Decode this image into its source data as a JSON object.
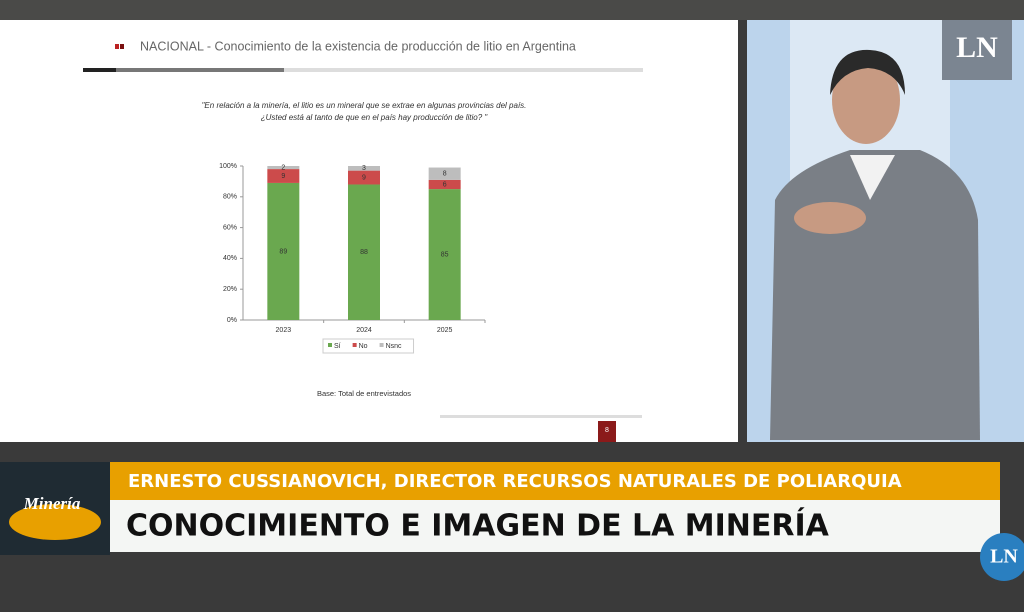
{
  "chart_data": {
    "type": "stacked-bar",
    "title": "NACIONAL - Conocimiento de la existencia de producción de litio en Argentina",
    "subtitle": [
      "\"En relación a la minería, el litio es un mineral que se extrae en algunas provincias del país.",
      "¿Usted está al tanto de que en el país hay producción de litio? \""
    ],
    "note": "Base: Total de entrevistados",
    "categories": [
      "2023",
      "2024",
      "2025"
    ],
    "series": [
      {
        "name": "Sí",
        "color": "#6aa84f",
        "values": [
          89,
          88,
          85
        ]
      },
      {
        "name": "No",
        "color": "#cc4b4b",
        "values": [
          9,
          9,
          6
        ]
      },
      {
        "name": "Nsnc",
        "color": "#bdbdbd",
        "values": [
          2,
          3,
          8
        ]
      }
    ],
    "ylim": [
      0,
      100
    ],
    "yticks": [
      {
        "value": 0,
        "label": "0%"
      },
      {
        "value": 20,
        "label": "20%"
      },
      {
        "value": 40,
        "label": "40%"
      },
      {
        "value": 60,
        "label": "60%"
      },
      {
        "value": 80,
        "label": "80%"
      },
      {
        "value": 100,
        "label": "100%"
      }
    ],
    "legend": "bottom"
  },
  "slide_fragment": "8",
  "broadcast": {
    "logo": "LN",
    "corner_logo": "LN",
    "section": "Minería",
    "speaker": "ERNESTO CUSSIANOVICH, DIRECTOR RECURSOS NATURALES DE POLIARQUIA",
    "headline": "CONOCIMIENTO E IMAGEN DE LA MINERÍA"
  }
}
